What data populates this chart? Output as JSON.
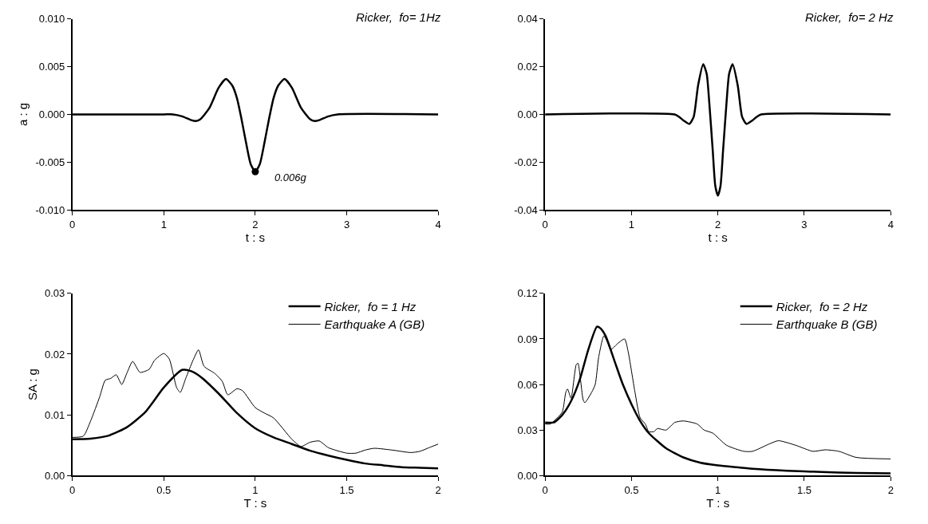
{
  "chart_data": [
    {
      "type": "line",
      "xlabel": "t : s",
      "ylabel": "a : g",
      "annotations": [
        "Ricker,  fo= 1Hz",
        {
          "text": "0.006g",
          "x": 2,
          "y": -0.006
        }
      ],
      "xlim": [
        0,
        4
      ],
      "xticks": [
        0,
        1,
        2,
        3,
        4
      ],
      "ylim": [
        -0.01,
        0.01
      ],
      "yticks": [
        {
          "value": -0.01,
          "label": "-0.010"
        },
        {
          "value": -0.005,
          "label": "-0.005"
        },
        {
          "value": 0,
          "label": "0.000"
        },
        {
          "value": 0.005,
          "label": "0.005"
        },
        {
          "value": 0.01,
          "label": "0.010"
        }
      ],
      "series": [
        {
          "color": "#000000",
          "x": [
            0,
            1.0,
            1.1,
            1.2,
            1.3,
            1.35,
            1.4,
            1.5,
            1.6,
            1.68,
            1.75,
            1.8,
            1.85,
            1.9,
            1.95,
            2.0,
            2.05,
            2.1,
            2.15,
            2.2,
            2.25,
            2.32,
            2.4,
            2.5,
            2.6,
            2.65,
            2.7,
            2.8,
            2.9,
            4
          ],
          "values": [
            0,
            0,
            0,
            -0.0002,
            -0.0006,
            -0.0007,
            -0.0005,
            0.0007,
            0.0028,
            0.0037,
            0.003,
            0.0017,
            -0.0005,
            -0.003,
            -0.0052,
            -0.006,
            -0.0052,
            -0.003,
            -0.0005,
            0.0017,
            0.003,
            0.0037,
            0.0028,
            0.0007,
            -0.0005,
            -0.0007,
            -0.0006,
            -0.0002,
            0,
            0
          ]
        },
        {
          "type": "scatter",
          "color": "#000000",
          "x": [
            2
          ],
          "values": [
            -0.006
          ]
        }
      ]
    },
    {
      "type": "line",
      "xlabel": "t : s",
      "annotations": [
        "Ricker,  fo= 2 Hz"
      ],
      "xlim": [
        0,
        4
      ],
      "xticks": [
        0,
        1,
        2,
        3,
        4
      ],
      "ylim": [
        -0.04,
        0.04
      ],
      "yticks": [
        {
          "value": -0.04,
          "label": "-0.04"
        },
        {
          "value": -0.02,
          "label": "-0.02"
        },
        {
          "value": 0,
          "label": "0.00"
        },
        {
          "value": 0.02,
          "label": "0.02"
        },
        {
          "value": 0.04,
          "label": "0.04"
        }
      ],
      "series": [
        {
          "color": "#000000",
          "x": [
            0,
            1.5,
            1.55,
            1.6,
            1.67,
            1.72,
            1.77,
            1.83,
            1.87,
            1.9,
            1.94,
            1.97,
            2.0,
            2.03,
            2.06,
            2.1,
            2.13,
            2.17,
            2.23,
            2.28,
            2.33,
            2.4,
            2.45,
            2.5,
            4
          ],
          "values": [
            0,
            0,
            -0.001,
            -0.0025,
            -0.004,
            -0.001,
            0.012,
            0.021,
            0.017,
            0.005,
            -0.015,
            -0.03,
            -0.034,
            -0.03,
            -0.015,
            0.005,
            0.017,
            0.021,
            0.012,
            -0.001,
            -0.004,
            -0.0025,
            -0.001,
            0,
            0
          ]
        }
      ]
    },
    {
      "type": "line",
      "xlabel": "T : s",
      "ylabel": "SA : g",
      "legend": "top right",
      "xlim": [
        0,
        2
      ],
      "xticks": [
        0,
        0.5,
        1,
        1.5,
        2
      ],
      "ylim": [
        0,
        0.03
      ],
      "yticks": [
        {
          "value": 0,
          "label": "0.00"
        },
        {
          "value": 0.01,
          "label": "0.01"
        },
        {
          "value": 0.02,
          "label": "0.02"
        },
        {
          "value": 0.03,
          "label": "0.03"
        }
      ],
      "series": [
        {
          "name": "Ricker,  fo = 1 Hz",
          "color": "#000000",
          "x": [
            0,
            0.1,
            0.2,
            0.3,
            0.4,
            0.5,
            0.6,
            0.65,
            0.7,
            0.8,
            0.9,
            1.0,
            1.1,
            1.2,
            1.3,
            1.4,
            1.5,
            1.6,
            1.7,
            1.8,
            1.9,
            2.0
          ],
          "values": [
            0.006,
            0.0061,
            0.0066,
            0.008,
            0.0105,
            0.0145,
            0.0174,
            0.0172,
            0.0163,
            0.0135,
            0.0103,
            0.0078,
            0.0063,
            0.0052,
            0.0041,
            0.0033,
            0.0026,
            0.002,
            0.0017,
            0.0014,
            0.0013,
            0.0012
          ]
        },
        {
          "name": "Earthquake A (GB)",
          "color": "#000000",
          "x": [
            0,
            0.06,
            0.1,
            0.15,
            0.18,
            0.21,
            0.24,
            0.27,
            0.3,
            0.33,
            0.37,
            0.42,
            0.45,
            0.5,
            0.53,
            0.57,
            0.59,
            0.62,
            0.66,
            0.69,
            0.72,
            0.78,
            0.82,
            0.85,
            0.9,
            0.93,
            1.0,
            1.05,
            1.1,
            1.2,
            1.25,
            1.3,
            1.35,
            1.4,
            1.5,
            1.55,
            1.6,
            1.65,
            1.75,
            1.85,
            1.9,
            1.95,
            2.0
          ],
          "values": [
            0.0063,
            0.0065,
            0.009,
            0.013,
            0.0157,
            0.016,
            0.0166,
            0.015,
            0.017,
            0.0188,
            0.017,
            0.0175,
            0.019,
            0.0201,
            0.0192,
            0.0145,
            0.0137,
            0.016,
            0.019,
            0.0207,
            0.018,
            0.0168,
            0.0155,
            0.0133,
            0.0143,
            0.014,
            0.0112,
            0.0103,
            0.0095,
            0.006,
            0.0048,
            0.0055,
            0.0057,
            0.0046,
            0.0037,
            0.0037,
            0.0042,
            0.0045,
            0.0042,
            0.0038,
            0.004,
            0.0046,
            0.0052
          ]
        }
      ]
    },
    {
      "type": "line",
      "xlabel": "T : s",
      "legend": "top right",
      "xlim": [
        0,
        2
      ],
      "xticks": [
        0,
        0.5,
        1,
        1.5,
        2
      ],
      "ylim": [
        0,
        0.12
      ],
      "yticks": [
        {
          "value": 0,
          "label": "0.00"
        },
        {
          "value": 0.03,
          "label": "0.03"
        },
        {
          "value": 0.06,
          "label": "0.06"
        },
        {
          "value": 0.09,
          "label": "0.09"
        },
        {
          "value": 0.12,
          "label": "0.12"
        }
      ],
      "series": [
        {
          "name": "Ricker,  fo = 2 Hz",
          "color": "#000000",
          "x": [
            0,
            0.05,
            0.1,
            0.15,
            0.2,
            0.25,
            0.3,
            0.32,
            0.35,
            0.4,
            0.45,
            0.5,
            0.55,
            0.6,
            0.7,
            0.8,
            0.9,
            1.0,
            1.1,
            1.2,
            1.4,
            1.6,
            1.8,
            2.0
          ],
          "values": [
            0.035,
            0.035,
            0.04,
            0.049,
            0.063,
            0.083,
            0.098,
            0.097,
            0.092,
            0.076,
            0.06,
            0.047,
            0.036,
            0.028,
            0.018,
            0.012,
            0.0085,
            0.0068,
            0.0056,
            0.0045,
            0.0032,
            0.0024,
            0.0017,
            0.0015
          ]
        },
        {
          "name": "Earthquake B (GB)",
          "color": "#000000",
          "x": [
            0,
            0.03,
            0.07,
            0.1,
            0.12,
            0.13,
            0.15,
            0.18,
            0.19,
            0.22,
            0.23,
            0.27,
            0.29,
            0.31,
            0.34,
            0.36,
            0.38,
            0.42,
            0.46,
            0.48,
            0.52,
            0.55,
            0.58,
            0.6,
            0.63,
            0.65,
            0.7,
            0.75,
            0.8,
            0.88,
            0.92,
            0.97,
            1.05,
            1.15,
            1.2,
            1.3,
            1.35,
            1.45,
            1.55,
            1.62,
            1.7,
            1.8,
            2.0
          ],
          "values": [
            0.034,
            0.034,
            0.038,
            0.042,
            0.055,
            0.057,
            0.051,
            0.073,
            0.074,
            0.05,
            0.048,
            0.055,
            0.06,
            0.078,
            0.092,
            0.088,
            0.083,
            0.087,
            0.09,
            0.082,
            0.055,
            0.038,
            0.034,
            0.029,
            0.029,
            0.031,
            0.03,
            0.035,
            0.036,
            0.034,
            0.03,
            0.028,
            0.02,
            0.016,
            0.016,
            0.021,
            0.023,
            0.02,
            0.016,
            0.017,
            0.016,
            0.012,
            0.011
          ]
        }
      ]
    }
  ]
}
